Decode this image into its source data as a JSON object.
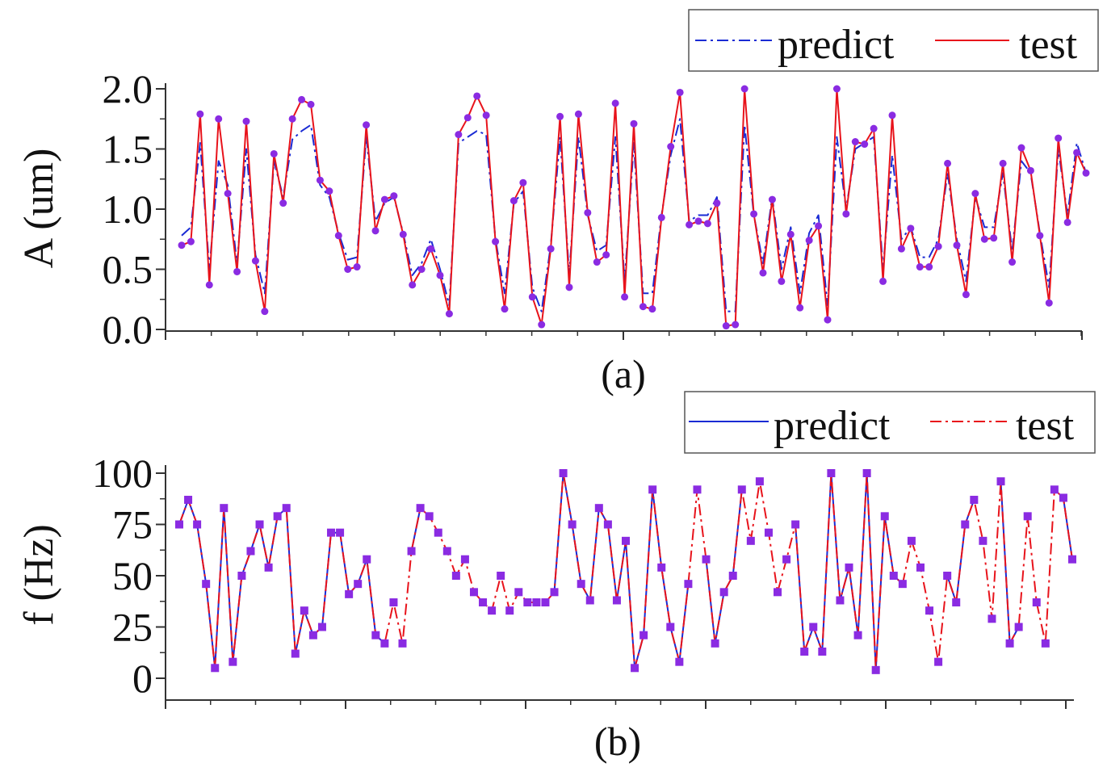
{
  "chart_data": [
    {
      "type": "line",
      "panel_label": "(a)",
      "ylabel": "A (um)",
      "xlabel": "",
      "ylim": [
        0,
        2.0
      ],
      "yticks": [
        0.0,
        0.5,
        1.0,
        1.5,
        2.0
      ],
      "ytick_labels": [
        "0.0",
        "0.5",
        "1.0",
        "1.5",
        "2.0"
      ],
      "legend": {
        "position": "top-right",
        "entries": [
          "predict",
          "test"
        ]
      },
      "series": [
        {
          "name": "test",
          "color": "#e8131b",
          "dash": "solid",
          "markers": true,
          "values": [
            0.7,
            0.73,
            1.79,
            0.37,
            1.75,
            1.13,
            0.48,
            1.73,
            0.57,
            0.15,
            1.46,
            1.05,
            1.75,
            1.91,
            1.87,
            1.24,
            1.15,
            0.78,
            0.5,
            0.52,
            1.7,
            0.82,
            1.08,
            1.11,
            0.79,
            0.37,
            0.5,
            0.67,
            0.45,
            0.13,
            1.62,
            1.76,
            1.94,
            1.78,
            0.73,
            0.17,
            1.07,
            1.22,
            0.27,
            0.04,
            0.67,
            1.77,
            0.35,
            1.79,
            0.97,
            0.56,
            0.62,
            1.88,
            0.27,
            1.71,
            0.19,
            0.17,
            0.93,
            1.52,
            1.97,
            0.87,
            0.9,
            0.88,
            1.05,
            0.03,
            0.04,
            2.0,
            0.96,
            0.47,
            1.08,
            0.4,
            0.79,
            0.18,
            0.74,
            0.86,
            0.08,
            2.0,
            0.96,
            1.56,
            1.54,
            1.67,
            0.4,
            1.78,
            0.67,
            0.84,
            0.52,
            0.52,
            0.69,
            1.38,
            0.7,
            0.29,
            1.13,
            0.75,
            0.76,
            1.38,
            0.56,
            1.51,
            1.32,
            0.78,
            0.22,
            1.59,
            0.89,
            1.47,
            1.3
          ]
        },
        {
          "name": "predict",
          "color": "#1a2bd4",
          "dash": "dashdot",
          "markers": false,
          "values": [
            0.78,
            0.85,
            1.55,
            0.5,
            1.4,
            1.2,
            0.55,
            1.5,
            0.62,
            0.3,
            1.4,
            1.1,
            1.58,
            1.65,
            1.7,
            1.2,
            1.1,
            0.8,
            0.58,
            0.6,
            1.6,
            0.9,
            1.05,
            1.1,
            0.8,
            0.45,
            0.55,
            0.75,
            0.5,
            0.2,
            1.55,
            1.6,
            1.65,
            1.62,
            0.75,
            0.3,
            1.05,
            1.15,
            0.35,
            0.15,
            0.7,
            1.6,
            0.45,
            1.6,
            0.95,
            0.65,
            0.7,
            1.6,
            0.4,
            1.55,
            0.3,
            0.3,
            0.95,
            1.45,
            1.75,
            0.9,
            0.95,
            0.95,
            1.1,
            0.15,
            0.15,
            1.7,
            0.95,
            0.55,
            1.1,
            0.5,
            0.85,
            0.3,
            0.8,
            0.95,
            0.2,
            1.6,
            1.0,
            1.5,
            1.55,
            1.6,
            0.5,
            1.45,
            0.75,
            0.85,
            0.6,
            0.6,
            0.75,
            1.3,
            0.75,
            0.4,
            1.1,
            0.85,
            0.85,
            1.3,
            0.65,
            1.4,
            1.3,
            0.8,
            0.35,
            1.5,
            0.95,
            1.55,
            1.3
          ]
        }
      ]
    },
    {
      "type": "line",
      "panel_label": "(b)",
      "ylabel": "f (Hz)",
      "xlabel": "",
      "ylim": [
        0,
        100
      ],
      "yticks": [
        0,
        25,
        50,
        75,
        100
      ],
      "ytick_labels": [
        "0",
        "25",
        "50",
        "75",
        "100"
      ],
      "legend": {
        "position": "top-right",
        "entries": [
          "predict",
          "test"
        ]
      },
      "series": [
        {
          "name": "test",
          "color": "#e8131b",
          "dash": "dashdot",
          "markers": true,
          "values": [
            75,
            87,
            75,
            46,
            5,
            83,
            8,
            50,
            62,
            75,
            54,
            79,
            83,
            12,
            33,
            21,
            25,
            71,
            71,
            41,
            46,
            58,
            21,
            17,
            37,
            17,
            62,
            83,
            79,
            71,
            62,
            50,
            58,
            42,
            37,
            33,
            50,
            33,
            42,
            37,
            37,
            37,
            42,
            100,
            75,
            46,
            38,
            83,
            75,
            38,
            67,
            5,
            21,
            92,
            54,
            25,
            8,
            46,
            92,
            58,
            17,
            42,
            50,
            92,
            67,
            96,
            71,
            42,
            58,
            75,
            13,
            25,
            13,
            100,
            38,
            54,
            21,
            100,
            4,
            79,
            50,
            46,
            67,
            54,
            33,
            8,
            50,
            37,
            75,
            87,
            67,
            29,
            96,
            17,
            25,
            79,
            37,
            17,
            92,
            88,
            58
          ]
        },
        {
          "name": "predict",
          "color": "#1a2bd4",
          "dash": "solid",
          "markers": false,
          "values": [
            75,
            87,
            75,
            46,
            5,
            83,
            8,
            50,
            62,
            75,
            54,
            79,
            83,
            12,
            33,
            21,
            25,
            71,
            71,
            41,
            46,
            58,
            21,
            17,
            null,
            null,
            62,
            83,
            null,
            null,
            null,
            null,
            null,
            null,
            null,
            null,
            null,
            null,
            null,
            null,
            null,
            null,
            42,
            100,
            75,
            46,
            38,
            83,
            75,
            38,
            67,
            5,
            21,
            92,
            54,
            25,
            8,
            46,
            null,
            58,
            17,
            42,
            50,
            92,
            null,
            96,
            null,
            null,
            null,
            75,
            13,
            25,
            13,
            100,
            38,
            54,
            21,
            100,
            4,
            79,
            50,
            46,
            null,
            null,
            null,
            null,
            50,
            37,
            75,
            87,
            null,
            null,
            96,
            17,
            25,
            null,
            null,
            null,
            null,
            88,
            58
          ]
        }
      ]
    }
  ]
}
